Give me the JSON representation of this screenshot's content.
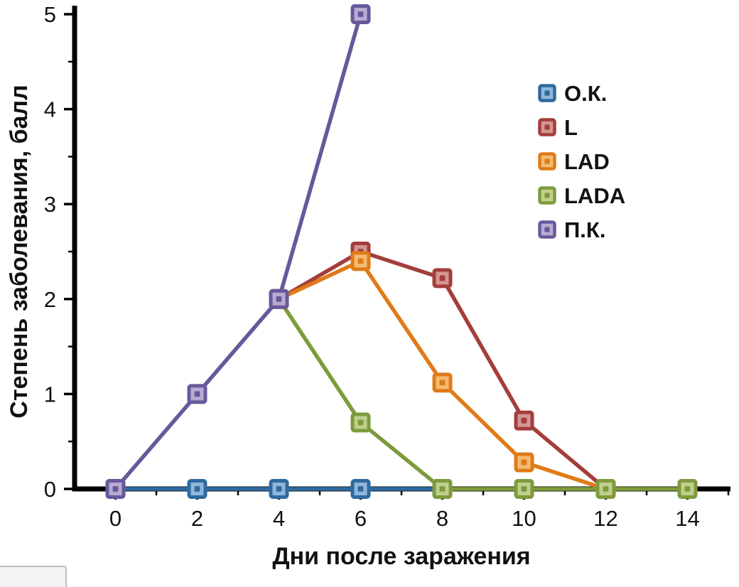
{
  "chart_data": {
    "type": "line",
    "title": "",
    "xlabel": "Дни после заражения",
    "ylabel": "Степень заболевания, балл",
    "xlim": [
      -1,
      15
    ],
    "ylim": [
      0,
      5
    ],
    "xticks": [
      0,
      2,
      4,
      6,
      8,
      10,
      12,
      14
    ],
    "yticks": [
      0,
      1,
      2,
      3,
      4,
      5
    ],
    "x_minor_ticks": [
      1,
      3,
      5,
      7,
      9,
      11,
      13,
      15
    ],
    "y_minor_step": 0.5,
    "grid": false,
    "legend_position": "upper right",
    "axis_color": "#000000",
    "series": [
      {
        "name": "О.К.",
        "color": "#2e6a9e",
        "marker_fill": "#8fb6d9",
        "x": [
          0,
          2,
          4,
          6,
          8
        ],
        "y": [
          0,
          0,
          0,
          0,
          0
        ]
      },
      {
        "name": "L",
        "color": "#a33e3b",
        "marker_fill": "#d29694",
        "x": [
          4,
          6,
          8,
          10,
          12
        ],
        "y": [
          2,
          2.5,
          2.22,
          0.72,
          0
        ]
      },
      {
        "name": "LAD",
        "color": "#e07b18",
        "marker_fill": "#f3bb72",
        "x": [
          4,
          6,
          8,
          10,
          12
        ],
        "y": [
          2,
          2.4,
          1.12,
          0.28,
          0
        ]
      },
      {
        "name": "LADA",
        "color": "#7d9b3c",
        "marker_fill": "#c1cf8d",
        "x": [
          4,
          6,
          8,
          10,
          12,
          14
        ],
        "y": [
          2,
          0.7,
          0,
          0,
          0,
          0
        ]
      },
      {
        "name": "П.К.",
        "color": "#68589b",
        "marker_fill": "#b7abd1",
        "x": [
          0,
          2,
          4,
          6
        ],
        "y": [
          0,
          1,
          2,
          5
        ]
      }
    ]
  }
}
